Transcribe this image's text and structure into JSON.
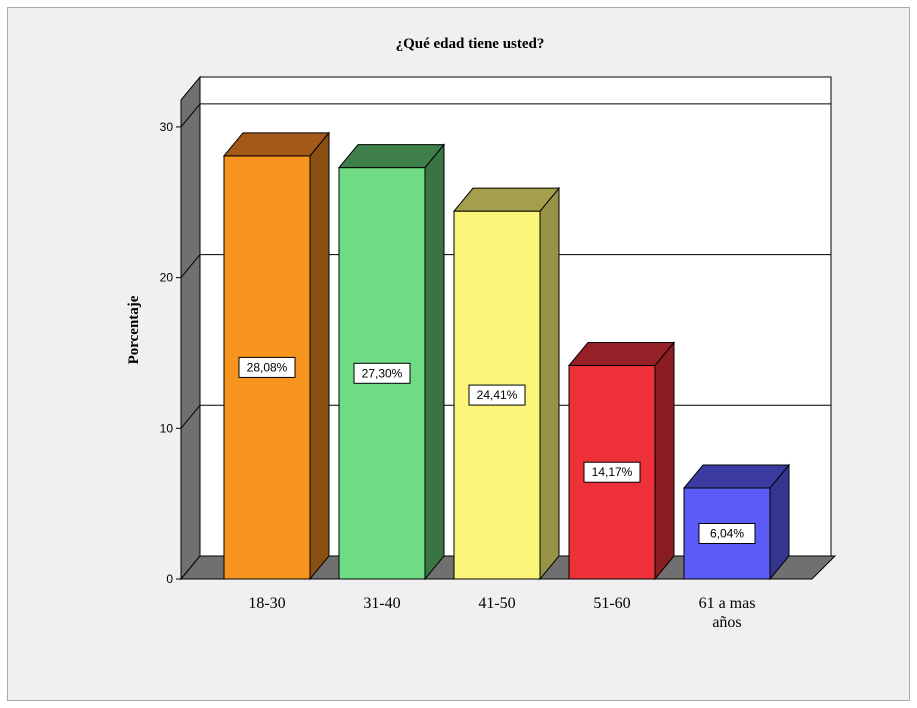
{
  "chart_data": {
    "type": "bar",
    "title": "¿Qué edad tiene usted?",
    "ylabel": "Porcentaje",
    "xlabel": "",
    "categories": [
      "18-30",
      "31-40",
      "41-50",
      "51-60",
      "61 a mas años"
    ],
    "values": [
      28.08,
      27.3,
      24.41,
      14.17,
      6.04
    ],
    "data_labels": [
      "28,08%",
      "27,30%",
      "24,41%",
      "14,17%",
      "6,04%"
    ],
    "ylim": [
      0,
      30
    ],
    "yticks": [
      0,
      10,
      20,
      30
    ],
    "grid": true,
    "style": "3d",
    "bar_colors": [
      "#f7941d",
      "#6fdc85",
      "#fbf57a",
      "#ee3139",
      "#5b5cf8"
    ],
    "bar_top_colors": [
      "#a2591a",
      "#3f7f4a",
      "#a39f4d",
      "#962028",
      "#3a3aa0"
    ],
    "bar_side_colors": [
      "#8a4f12",
      "#3a7344",
      "#969246",
      "#8a1d24",
      "#33358f"
    ]
  }
}
